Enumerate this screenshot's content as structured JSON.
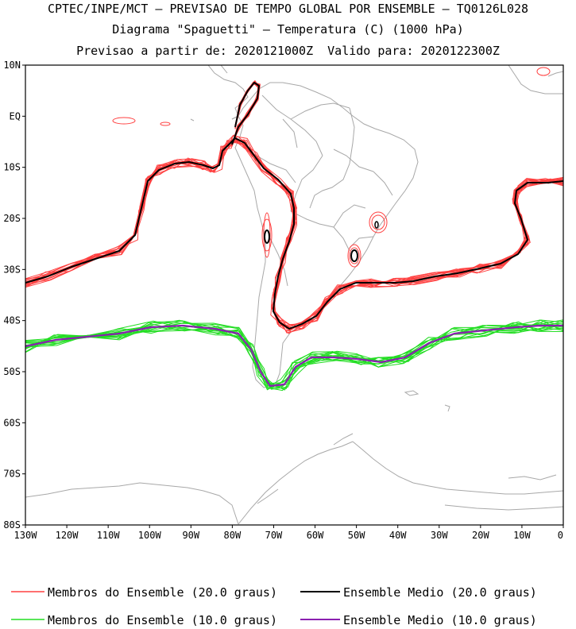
{
  "header": {
    "line1": "CPTEC/INPE/MCT — PREVISAO DE TEMPO GLOBAL POR ENSEMBLE — TQ0126L028",
    "line2": "Diagrama \"Spaguetti\" — Temperatura (C) (1000 hPa)",
    "line3": "Previsao a partir de: 2020121000Z  Valido para: 2020122300Z"
  },
  "map": {
    "lat_labels": [
      "10N",
      "EQ",
      "10S",
      "20S",
      "30S",
      "40S",
      "50S",
      "60S",
      "70S",
      "80S"
    ],
    "lon_labels": [
      "130W",
      "120W",
      "110W",
      "100W",
      "90W",
      "80W",
      "70W",
      "60W",
      "50W",
      "40W",
      "30W",
      "20W",
      "10W",
      "0"
    ],
    "coast_color": "#a8a8a8"
  },
  "legend": [
    {
      "label": "Membros do Ensemble (20.0 graus)",
      "color": "#ff4040"
    },
    {
      "label": "Ensemble Medio (20.0 graus)",
      "color": "#000000"
    },
    {
      "label": "Membros do Ensemble (10.0 graus)",
      "color": "#22dd22"
    },
    {
      "label": "Ensemble Medio (10.0 graus)",
      "color": "#8a1fb0"
    }
  ],
  "colors": {
    "red": "#ff4040",
    "black": "#000000",
    "green": "#22dd22",
    "purple": "#8a1fb0"
  }
}
